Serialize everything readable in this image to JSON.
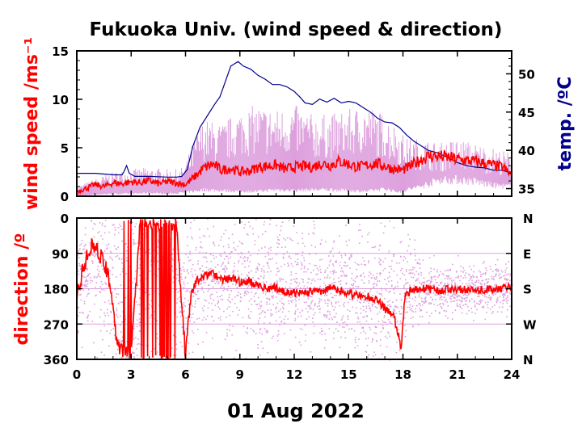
{
  "chart_data": [
    {
      "type": "line",
      "title": "Fukuoka Univ. (wind speed & direction)",
      "ylabel": "wind speed /ms⁻¹",
      "y2label": "temp. /ºC",
      "xlabel": "01 Aug 2022",
      "xlim": [
        0,
        24
      ],
      "ylim": [
        0,
        15
      ],
      "y2lim": [
        34,
        53
      ],
      "xticks": [
        "0",
        "3",
        "6",
        "9",
        "12",
        "15",
        "18",
        "21",
        "24"
      ],
      "yticks": [
        "0",
        "5",
        "10",
        "15"
      ],
      "y2ticks": [
        "35",
        "40",
        "45",
        "50"
      ],
      "series": [
        {
          "role": "wind speed (range)",
          "color": "#dda0dd",
          "x": [
            0,
            1,
            2,
            3,
            4,
            5,
            5.7,
            6,
            6.5,
            7,
            8,
            9,
            10,
            11,
            12,
            13,
            14,
            15,
            16,
            17,
            17.8,
            18.2,
            19,
            20,
            21,
            22,
            23,
            24
          ],
          "low": [
            0,
            0.2,
            0.3,
            0.3,
            0.4,
            0.3,
            0.4,
            0.5,
            0.6,
            0.8,
            0.7,
            0.6,
            0.6,
            0.8,
            0.7,
            0.8,
            0.8,
            0.7,
            0.6,
            0.9,
            0.5,
            0.8,
            1.2,
            2.0,
            2.0,
            1.8,
            1.3,
            1.2
          ],
          "high": [
            1.0,
            1.8,
            2.5,
            2.8,
            3.0,
            2.8,
            2.8,
            3.5,
            6.0,
            8.0,
            7.5,
            9.0,
            9.5,
            9.0,
            9.5,
            8.5,
            8.5,
            9.0,
            9.5,
            8.5,
            7.0,
            6.0,
            6.0,
            5.5,
            6.0,
            5.5,
            5.0,
            4.5
          ]
        },
        {
          "role": "wind speed (mean)",
          "color": "#ff0000",
          "x": [
            0,
            0.5,
            1,
            1.5,
            2,
            2.5,
            3,
            3.5,
            4,
            4.5,
            5,
            5.5,
            6,
            6.5,
            7,
            7.5,
            8,
            8.5,
            9,
            9.5,
            10,
            10.5,
            11,
            11.5,
            12,
            12.5,
            13,
            13.5,
            14,
            14.5,
            15,
            15.5,
            16,
            16.5,
            17,
            17.5,
            18,
            18.5,
            19,
            19.5,
            20,
            20.5,
            21,
            21.5,
            22,
            22.5,
            23,
            23.5,
            24
          ],
          "values": [
            0.5,
            0.8,
            1.2,
            1.0,
            1.4,
            1.3,
            1.5,
            1.4,
            1.6,
            1.3,
            1.5,
            1.4,
            1.2,
            2.0,
            2.9,
            3.3,
            2.7,
            2.9,
            2.5,
            2.6,
            3.0,
            3.1,
            3.2,
            2.8,
            3.0,
            3.1,
            3.0,
            3.4,
            3.2,
            3.6,
            3.3,
            3.0,
            3.2,
            3.4,
            3.1,
            2.8,
            2.7,
            3.2,
            3.8,
            4.2,
            4.1,
            4.0,
            3.8,
            3.7,
            3.6,
            3.4,
            3.2,
            3.0,
            2.2
          ]
        },
        {
          "role": "temperature",
          "axis": "right",
          "color": "#00008b",
          "x": [
            0,
            1,
            2,
            2.5,
            2.6,
            2.75,
            2.9,
            3.2,
            4,
            5,
            5.5,
            5.8,
            6.1,
            6.4,
            6.8,
            7.2,
            7.6,
            7.9,
            8.2,
            8.5,
            8.9,
            9.2,
            9.6,
            10,
            10.4,
            10.8,
            11.2,
            11.6,
            12,
            12.3,
            12.6,
            13,
            13.4,
            13.8,
            14.2,
            14.6,
            15,
            15.4,
            15.8,
            16.2,
            16.6,
            17,
            17.4,
            17.8,
            18.2,
            18.6,
            19,
            19.4,
            20,
            20.5,
            21,
            21.5,
            22,
            22.5,
            23,
            23.5,
            24
          ],
          "values": [
            37.0,
            37.0,
            36.8,
            36.8,
            37.2,
            38.0,
            37.0,
            36.6,
            36.6,
            36.5,
            36.5,
            36.6,
            37.5,
            40.5,
            43.0,
            44.5,
            46.0,
            47.0,
            49.0,
            51.0,
            51.6,
            51.0,
            50.6,
            49.8,
            49.3,
            48.6,
            48.6,
            48.3,
            47.7,
            47.0,
            46.2,
            46.0,
            46.7,
            46.3,
            46.8,
            46.2,
            46.4,
            46.2,
            45.6,
            45.0,
            44.2,
            43.7,
            43.6,
            43.0,
            42.0,
            41.2,
            40.6,
            40.0,
            39.6,
            39.0,
            38.4,
            38.0,
            37.8,
            37.7,
            37.4,
            37.4,
            37.0
          ]
        }
      ]
    },
    {
      "type": "scatter",
      "ylabel": "direction /º",
      "xlim": [
        0,
        24
      ],
      "ylim": [
        0,
        360
      ],
      "xticks": [
        "0",
        "3",
        "6",
        "9",
        "12",
        "15",
        "18",
        "21",
        "24"
      ],
      "yticks": [
        "0",
        "90",
        "180",
        "270",
        "360"
      ],
      "y2ticks": [
        "N",
        "E",
        "S",
        "W",
        "N"
      ],
      "series": [
        {
          "role": "direction (10-min samples)",
          "color": "#dda0dd",
          "x": [
            0,
            1,
            2,
            3,
            4,
            5,
            6,
            7,
            8,
            9,
            10,
            11,
            12,
            13,
            14,
            15,
            16,
            17,
            18,
            19,
            20,
            21,
            22,
            23,
            24
          ],
          "centre": [
            180,
            100,
            200,
            320,
            30,
            40,
            200,
            160,
            150,
            160,
            170,
            170,
            175,
            180,
            180,
            185,
            200,
            220,
            190,
            180,
            180,
            180,
            180,
            180,
            180
          ],
          "spread": [
            90,
            110,
            150,
            150,
            160,
            160,
            140,
            110,
            110,
            120,
            120,
            120,
            120,
            110,
            110,
            110,
            120,
            130,
            110,
            60,
            50,
            50,
            50,
            50,
            50
          ]
        },
        {
          "role": "direction (mean)",
          "color": "#ff0000",
          "x": [
            0,
            0.4,
            0.8,
            1.2,
            1.6,
            2.0,
            2.2,
            2.5,
            3.0,
            3.5,
            4.0,
            4.5,
            5.0,
            5.5,
            6.0,
            6.3,
            6.6,
            7.0,
            7.5,
            8.0,
            8.5,
            9.0,
            9.5,
            10.0,
            10.5,
            11.0,
            11.5,
            12.0,
            12.5,
            13.0,
            13.5,
            14.0,
            14.5,
            15.0,
            15.5,
            16.0,
            16.5,
            17.0,
            17.5,
            17.9,
            18.1,
            18.4,
            18.8,
            19.5,
            20,
            21,
            22,
            23,
            24
          ],
          "values": [
            200,
            120,
            70,
            90,
            120,
            220,
            320,
            345,
            350,
            10,
            5,
            15,
            5,
            20,
            350,
            200,
            160,
            150,
            140,
            160,
            150,
            165,
            160,
            175,
            180,
            175,
            190,
            190,
            195,
            185,
            190,
            180,
            185,
            190,
            200,
            200,
            205,
            230,
            250,
            330,
            200,
            185,
            180,
            182,
            185,
            180,
            185,
            180,
            178
          ]
        }
      ]
    }
  ],
  "colors": {
    "wind_speed_label": "#ff0000",
    "temperature_label": "#00008b",
    "direction_label": "#ff0000",
    "grid": "#dda0dd"
  }
}
